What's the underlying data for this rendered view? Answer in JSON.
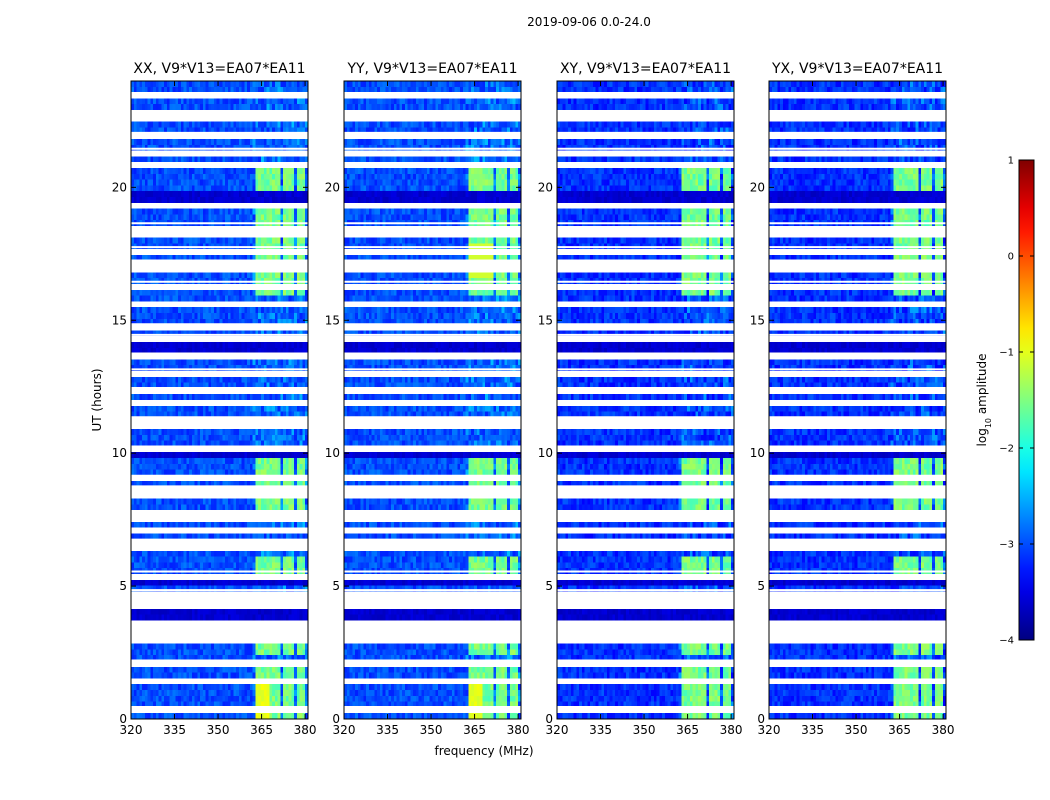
{
  "figure_title": "2019-09-06 0.0-24.0",
  "chart_data": {
    "type": "heatmap",
    "description_units": {
      "x": "MHz",
      "y": "hours",
      "color": "log10 amplitude"
    },
    "xlabel": "frequency (MHz)",
    "ylabel": "UT (hours)",
    "xlim": [
      320,
      381
    ],
    "ylim": [
      0,
      24
    ],
    "xticks": [
      320,
      335,
      350,
      365,
      380
    ],
    "yticks": [
      0,
      5,
      10,
      15,
      20
    ],
    "panels": [
      {
        "title": "XX, V9*V13=EA07*EA11",
        "pol": "XX"
      },
      {
        "title": "YY, V9*V13=EA07*EA11",
        "pol": "YY"
      },
      {
        "title": "XY, V9*V13=EA07*EA11",
        "pol": "XY"
      },
      {
        "title": "YX, V9*V13=EA07*EA11",
        "pol": "YX"
      }
    ],
    "colorbar": {
      "label": "log10 amplitude",
      "range": [
        -4,
        1
      ],
      "ticks": [
        "1",
        "0",
        "−1",
        "−2",
        "−3",
        "−4"
      ],
      "colormap": "jet"
    },
    "background_level": -3,
    "rfi_bands_mhz": [
      [
        363,
        369
      ],
      [
        369,
        371
      ],
      [
        372,
        375
      ],
      [
        375,
        376
      ],
      [
        377,
        380
      ]
    ],
    "rfi_time_blocks_hours": [
      [
        0,
        2
      ],
      [
        2.3,
        3.0
      ],
      [
        3.8,
        4.8
      ],
      [
        5.0,
        6.0
      ],
      [
        7.8,
        10.1
      ],
      [
        15.9,
        18.0
      ],
      [
        18.6,
        20.7
      ]
    ],
    "flagged_times_hours": [
      0.45,
      1.45,
      2.1,
      2.2,
      2.95,
      3.35,
      3.55,
      3.65,
      4.35,
      4.65,
      4.85,
      5.55,
      6.55,
      6.65,
      6.75,
      7.15,
      7.55,
      7.75,
      8.45,
      8.75,
      9.15,
      10.25,
      11.15,
      11.35,
      11.95,
      12.45,
      13.15,
      13.75,
      14.45,
      14.85,
      15.65,
      16.45,
      16.95,
      17.25,
      17.75,
      18.25,
      18.5,
      18.65,
      19.35,
      20.85,
      21.45,
      22.05,
      22.65,
      22.85,
      23.55
    ],
    "dark_times_hours": [
      5.1,
      5.2,
      16.2,
      14.1,
      13.85,
      9.9,
      10.05,
      19.6,
      19.7,
      3.85,
      4.0
    ]
  }
}
